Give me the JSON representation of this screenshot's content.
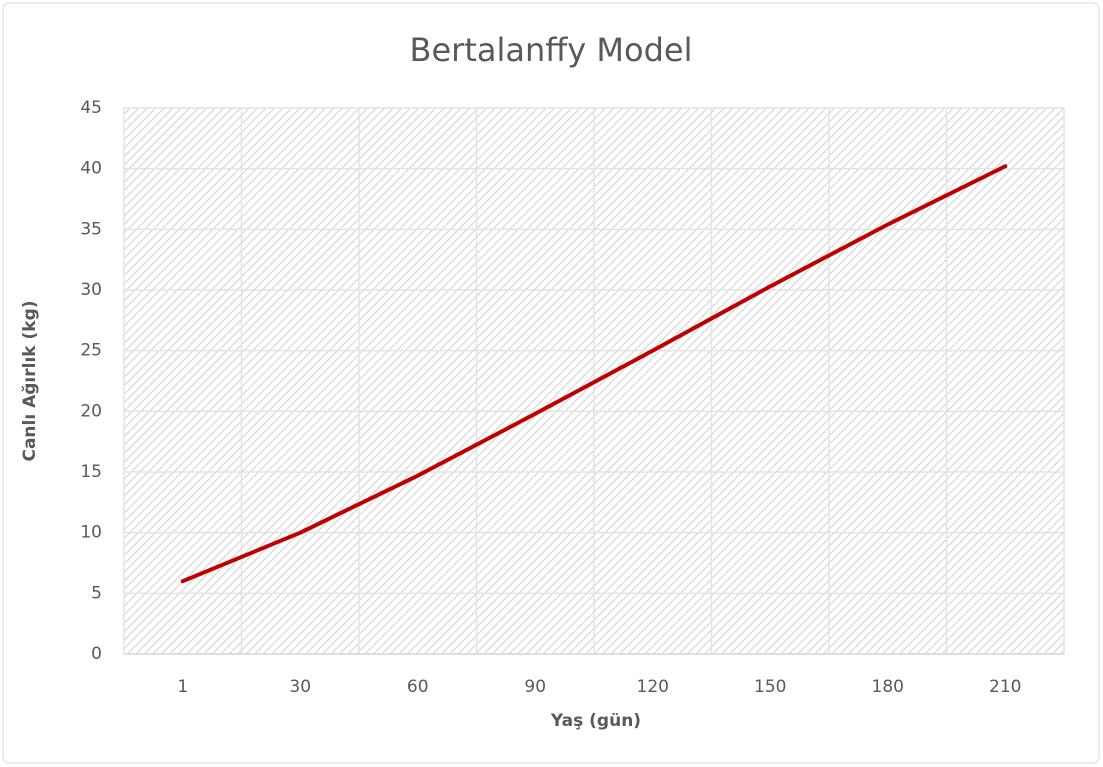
{
  "chart_data": {
    "type": "line",
    "title": "Bertalanffy Model",
    "x_label": "Yaş (gün)",
    "y_label": "Canlı Ağırlık (kg)",
    "categories": [
      "1",
      "30",
      "60",
      "90",
      "120",
      "150",
      "180",
      "210"
    ],
    "series": [
      {
        "name": "Bertalanffy Model",
        "color": "#c00000",
        "values": [
          6.0,
          10.0,
          14.7,
          19.8,
          25.0,
          30.3,
          35.4,
          40.2
        ]
      }
    ],
    "ylim": [
      0,
      45
    ],
    "yticks": [
      0,
      5,
      10,
      15,
      20,
      25,
      30,
      35,
      40,
      45
    ],
    "grid": true
  }
}
